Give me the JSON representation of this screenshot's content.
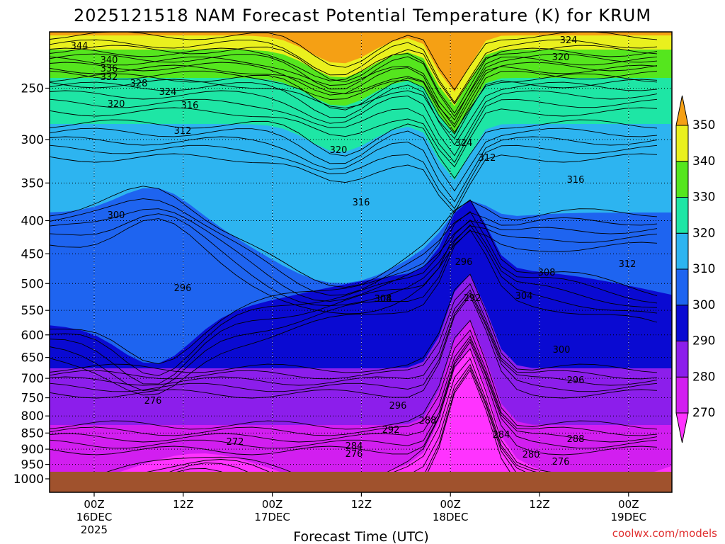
{
  "title": "2025121518 NAM Forecast Potential Temperature (K) for KRUM",
  "credit": "coolwx.com/models",
  "chart_data": {
    "type": "heatmap",
    "title": "2025121518 NAM Forecast Potential Temperature (K) for KRUM",
    "xlabel": "Forecast Time (UTC)",
    "ylabel": "",
    "y_scale": "log-pressure",
    "y_reversed": true,
    "y_ticks": [
      250,
      300,
      350,
      400,
      450,
      500,
      550,
      600,
      650,
      700,
      750,
      800,
      850,
      900,
      950,
      1000
    ],
    "x_ticks": [
      {
        "line1": "00Z",
        "line2": "16DEC",
        "line3": "2025"
      },
      {
        "line1": "12Z",
        "line2": "",
        "line3": ""
      },
      {
        "line1": "00Z",
        "line2": "17DEC",
        "line3": ""
      },
      {
        "line1": "12Z",
        "line2": "",
        "line3": ""
      },
      {
        "line1": "00Z",
        "line2": "18DEC",
        "line3": ""
      },
      {
        "line1": "12Z",
        "line2": "",
        "line3": ""
      },
      {
        "line1": "00Z",
        "line2": "19DEC",
        "line3": ""
      }
    ],
    "colorbar": {
      "levels": [
        270,
        280,
        290,
        300,
        310,
        320,
        330,
        340,
        350
      ],
      "colors": [
        "#ff33ff",
        "#d21ef0",
        "#8c1eeb",
        "#0a0ad2",
        "#1e64f0",
        "#2db4f0",
        "#1ee6a5",
        "#55e61e",
        "#eaf01e",
        "#f5a014"
      ]
    },
    "contour_interval": 2,
    "contour_labels": [
      344,
      340,
      336,
      332,
      328,
      324,
      320,
      316,
      312,
      300,
      296,
      320,
      316,
      324,
      312,
      296,
      292,
      308,
      304,
      316,
      308,
      304,
      312,
      300,
      296,
      296,
      292,
      288,
      284,
      276,
      272,
      276,
      284,
      280,
      276,
      288,
      324,
      320
    ],
    "grid": true,
    "terrain_color": "#a0522d"
  }
}
